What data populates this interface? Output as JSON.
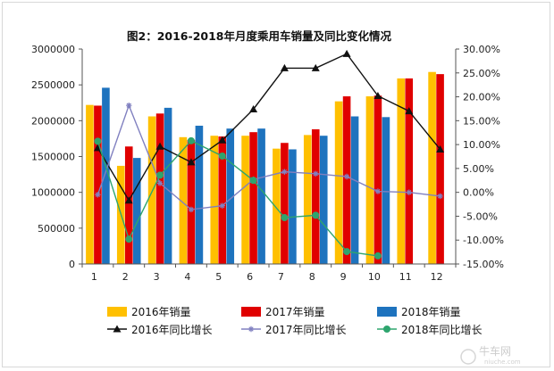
{
  "chart_data": {
    "type": "bar",
    "title": "图2：2016-2018年月度乘用车销量及同比变化情况",
    "categories": [
      "1",
      "2",
      "3",
      "4",
      "5",
      "6",
      "7",
      "8",
      "9",
      "10",
      "11",
      "12"
    ],
    "ylim": [
      0,
      3000000
    ],
    "y_ticks": [
      "0",
      "500000",
      "1000000",
      "1500000",
      "2000000",
      "2500000",
      "3000000"
    ],
    "y2lim": [
      -15,
      30
    ],
    "y2_ticks": [
      "-15.00%",
      "-10.00%",
      "-5.00%",
      "0.00%",
      "5.00%",
      "10.00%",
      "15.00%",
      "20.00%",
      "25.00%",
      "30.00%"
    ],
    "bar_series": [
      {
        "name": "2016年销量",
        "color": "#FFC000",
        "values": [
          2220000,
          1370000,
          2060000,
          1770000,
          1790000,
          1790000,
          1610000,
          1800000,
          2270000,
          2340000,
          2590000,
          2680000
        ]
      },
      {
        "name": "2017年销量",
        "color": "#E00000",
        "values": [
          2210000,
          1640000,
          2100000,
          1730000,
          1780000,
          1840000,
          1690000,
          1880000,
          2340000,
          2350000,
          2590000,
          2650000
        ]
      },
      {
        "name": "2018年销量",
        "color": "#1E73BE",
        "values": [
          2460000,
          1480000,
          2180000,
          1930000,
          1890000,
          1890000,
          1600000,
          1790000,
          2060000,
          2050000,
          null,
          null
        ]
      }
    ],
    "line_series": [
      {
        "name": "2016年同比增长",
        "color": "#111111",
        "marker": "triangle",
        "values": [
          9.3,
          -1.7,
          9.6,
          6.3,
          10.9,
          17.4,
          26.0,
          26.0,
          29.0,
          20.2,
          17.0,
          9.0
        ]
      },
      {
        "name": "2017年同比增长",
        "color": "#8080C0",
        "marker": "star",
        "values": [
          -0.5,
          18.2,
          1.9,
          -3.6,
          -2.8,
          2.7,
          4.3,
          3.9,
          3.3,
          0.2,
          0.0,
          -0.8
        ]
      },
      {
        "name": "2018年同比增长",
        "color": "#2EA56E",
        "marker": "circle",
        "values": [
          10.7,
          -9.8,
          3.6,
          10.8,
          7.6,
          2.5,
          -5.3,
          -4.8,
          -12.4,
          -13.3,
          null,
          null
        ]
      }
    ]
  },
  "watermark": {
    "main": "牛车网",
    "sub": "niuche.com"
  }
}
